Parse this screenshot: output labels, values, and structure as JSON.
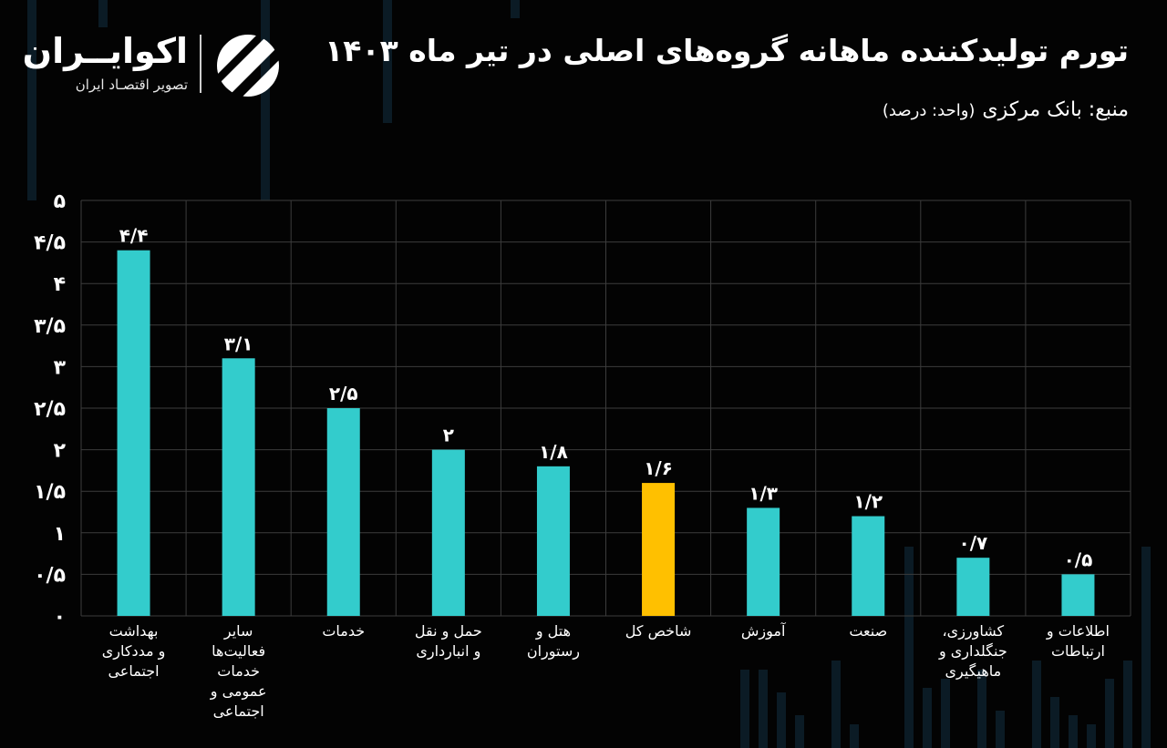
{
  "brand": {
    "name": "اکوایــران",
    "tagline": "تصویر اقتصـاد ایران"
  },
  "header": {
    "title": "تورم تولیدکننده ماهانه گروه‌های اصلی در تیر ماه ۱۴۰۳",
    "source": "منبع: بانک مرکزی",
    "unit": "(واحد: درصد)"
  },
  "colors": {
    "background": "#030303",
    "bar": "#33cccc",
    "highlight": "#ffc000",
    "grid": "#3c3c3c"
  },
  "chart_data": {
    "type": "bar",
    "categories": [
      [
        "بهداشت",
        "و مددکاری",
        "اجتماعی"
      ],
      [
        "سایر",
        "فعالیت‌ها",
        "خدمات",
        "عمومی و",
        "اجتماعی"
      ],
      [
        "خدمات"
      ],
      [
        "حمل و نقل",
        "و انبارداری"
      ],
      [
        "هتل و",
        "رستوران"
      ],
      [
        "شاخص کل"
      ],
      [
        "آموزش"
      ],
      [
        "صنعت"
      ],
      [
        "کشاورزی،",
        "جنگلداری و",
        "ماهیگیری"
      ],
      [
        "اطلاعات و",
        "ارتباطات"
      ]
    ],
    "values": [
      4.4,
      3.1,
      2.5,
      2.0,
      1.8,
      1.6,
      1.3,
      1.2,
      0.7,
      0.5
    ],
    "value_labels": [
      "۴/۴",
      "۳/۱",
      "۲/۵",
      "۲",
      "۱/۸",
      "۱/۶",
      "۱/۳",
      "۱/۲",
      "۰/۷",
      "۰/۵"
    ],
    "highlight_index": 5,
    "ylim": [
      0,
      5
    ],
    "yticks": [
      0,
      0.5,
      1,
      1.5,
      2,
      2.5,
      3,
      3.5,
      4,
      4.5,
      5
    ],
    "ytick_labels": [
      "۰",
      "۰/۵",
      "۱",
      "۱/۵",
      "۲",
      "۲/۵",
      "۳",
      "۳/۵",
      "۴",
      "۴/۵",
      "۵"
    ],
    "grid": true,
    "legend": "none"
  }
}
